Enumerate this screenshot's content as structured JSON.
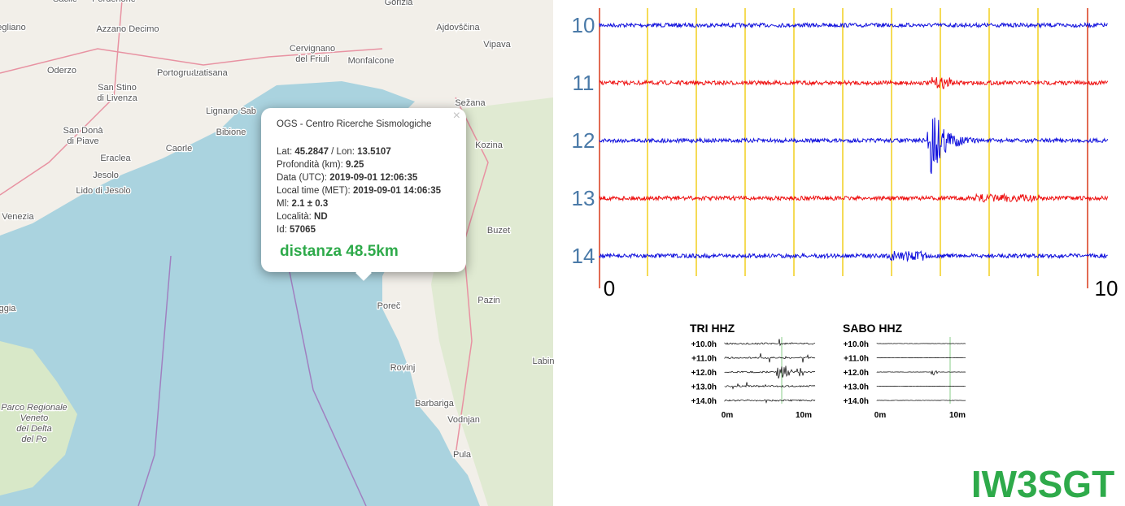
{
  "map": {
    "labels": [
      {
        "lines": [
          "Sacile"
        ]
      },
      {
        "lines": [
          "Pordenone"
        ]
      },
      {
        "lines": [
          "Gorizia"
        ]
      },
      {
        "lines": [
          "Ajdovščina"
        ]
      },
      {
        "lines": [
          "egliano"
        ]
      },
      {
        "lines": [
          "Azzano Decimo"
        ]
      },
      {
        "lines": [
          "Cervignano",
          "del Friuli"
        ]
      },
      {
        "lines": [
          "Monfalcone"
        ]
      },
      {
        "lines": [
          "Vipava"
        ]
      },
      {
        "lines": [
          "Oderzo"
        ]
      },
      {
        "lines": [
          "Portogruaro"
        ]
      },
      {
        "lines": [
          "Latisana"
        ]
      },
      {
        "lines": [
          "San Stino",
          "di Livenza"
        ]
      },
      {
        "lines": [
          "Lignano Sab"
        ]
      },
      {
        "lines": [
          "Sežana"
        ]
      },
      {
        "lines": [
          "San Donà",
          "di Piave"
        ]
      },
      {
        "lines": [
          "Bibione"
        ]
      },
      {
        "lines": [
          "Caorle"
        ]
      },
      {
        "lines": [
          "Kozina"
        ]
      },
      {
        "lines": [
          "Eraclea"
        ]
      },
      {
        "lines": [
          "Jesolo"
        ]
      },
      {
        "lines": [
          "Lido di Jesolo"
        ]
      },
      {
        "lines": [
          "Venezia"
        ]
      },
      {
        "lines": [
          "Buzet"
        ]
      },
      {
        "lines": [
          "Poreč"
        ]
      },
      {
        "lines": [
          "Pazin"
        ]
      },
      {
        "lines": [
          "ggia"
        ]
      },
      {
        "lines": [
          "Labin"
        ]
      },
      {
        "lines": [
          "Rovinj"
        ]
      },
      {
        "lines": [
          "Barbariga"
        ]
      },
      {
        "lines": [
          "Vodnjan"
        ]
      },
      {
        "lines": [
          "Pula"
        ]
      },
      {
        "lines": [
          "Parco Regionale",
          "Veneto",
          "del Delta",
          "del Po"
        ]
      }
    ]
  },
  "popup": {
    "close": "×",
    "title": "OGS - Centro Ricerche Sismologiche",
    "fields": [
      {
        "label": "Lat:",
        "value": "45.2847",
        "label2": "/ Lon:",
        "value2": "13.5107"
      },
      {
        "label": "Profondità (km):",
        "value": "9.25"
      },
      {
        "label": "Data (UTC):",
        "value": "2019-09-01 12:06:35"
      },
      {
        "label": "Local time (MET):",
        "value": "2019-09-01 14:06:35"
      },
      {
        "label": "Ml:",
        "value": "2.1 ± 0.3"
      },
      {
        "label": "Località:",
        "value": "ND"
      },
      {
        "label": "Id:",
        "value": "57065"
      }
    ],
    "distance": "distanza 48.5km"
  },
  "seismogram": {
    "row_labels": [
      "10",
      "11",
      "12",
      "13",
      "14"
    ],
    "x_labels": [
      "0",
      "10"
    ]
  },
  "thumbnails": [
    {
      "title": "TRI HHZ",
      "rows": [
        "+10.0h",
        "+11.0h",
        "+12.0h",
        "+13.0h",
        "+14.0h"
      ],
      "x_labels": [
        "0m",
        "10m"
      ]
    },
    {
      "title": "SABO HHZ",
      "rows": [
        "+10.0h",
        "+11.0h",
        "+12.0h",
        "+13.0h",
        "+14.0h"
      ],
      "x_labels": [
        "0m",
        "10m"
      ]
    }
  ],
  "brand": "IW3SGT"
}
